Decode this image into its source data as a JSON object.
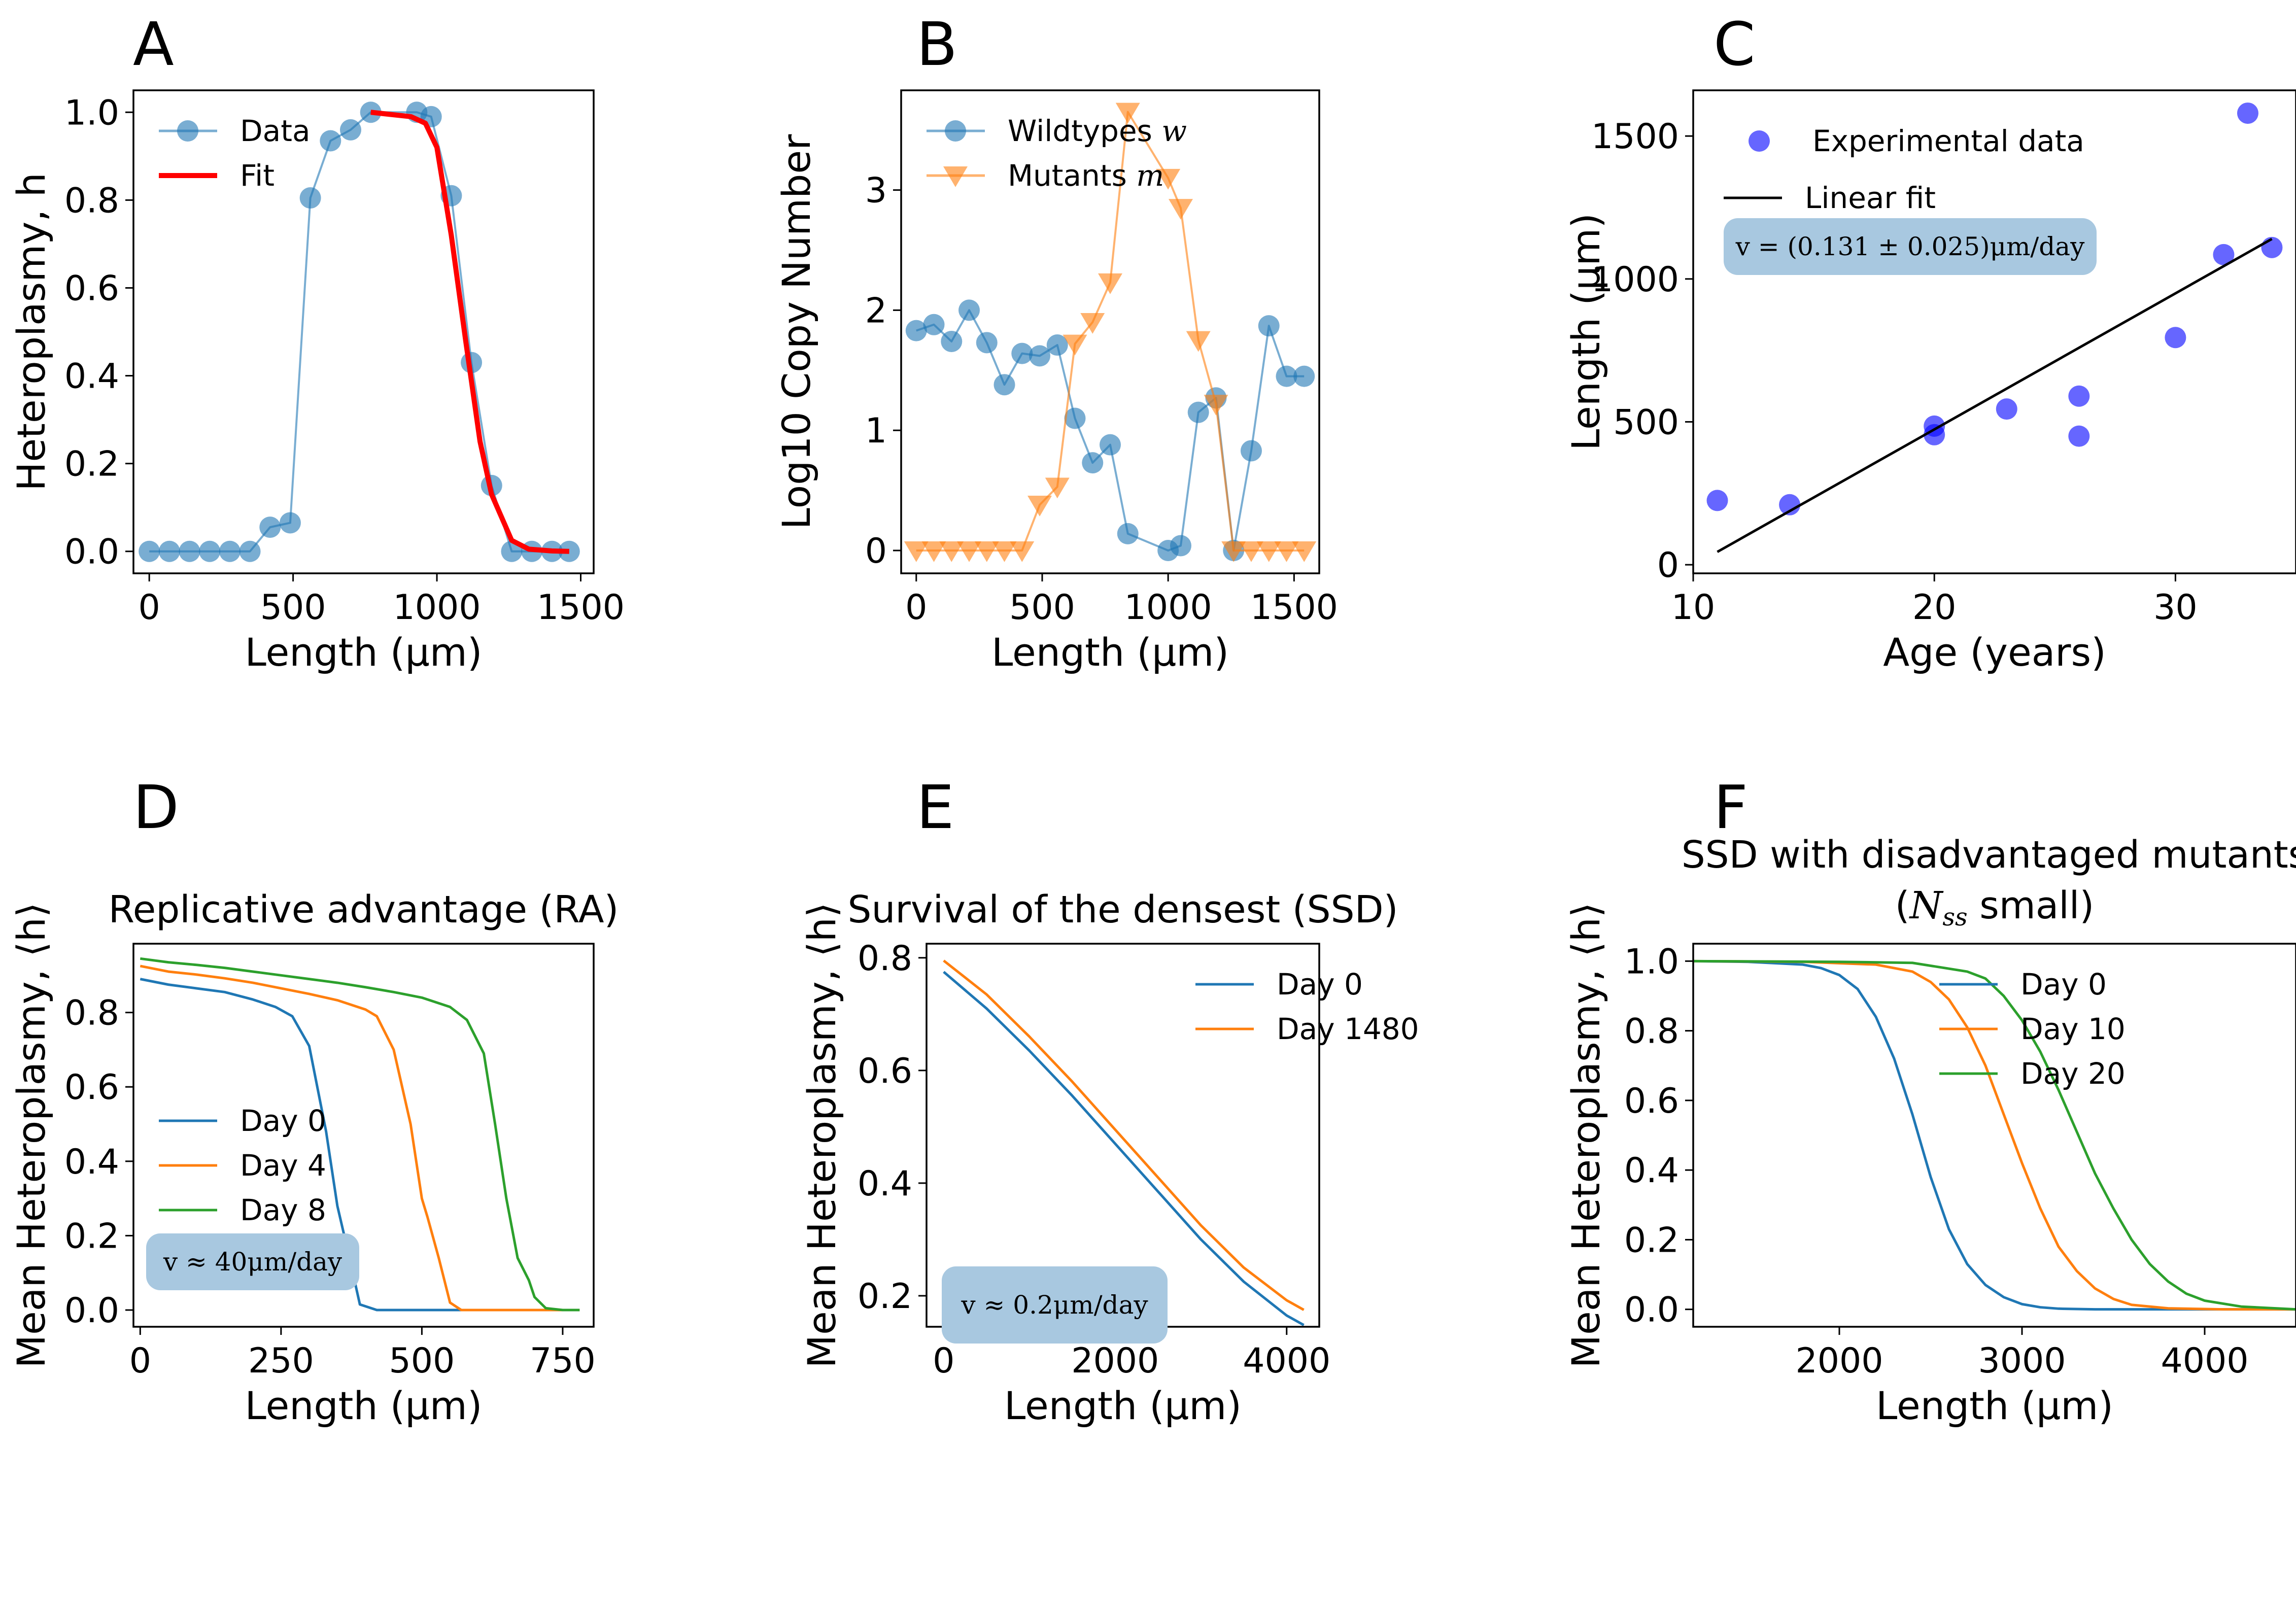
{
  "chart_data": [
    {
      "id": "A",
      "type": "line",
      "panel_label": "A",
      "title": "",
      "xlabel": "Length (μm)",
      "ylabel": "Heteroplasmy, h",
      "xlim": [
        -55,
        1545
      ],
      "ylim": [
        -0.05,
        1.05
      ],
      "xticks": [
        0,
        500,
        1000,
        1500
      ],
      "yticks": [
        0.0,
        0.2,
        0.4,
        0.6,
        0.8,
        1.0
      ],
      "tick_decimals": {
        "x": 0,
        "y": 1
      },
      "legend_position": "upper-left",
      "series": [
        {
          "name": "Data",
          "color": "#1f77b4",
          "marker": "circle",
          "alpha": 0.6,
          "x": [
            0,
            70,
            140,
            210,
            280,
            350,
            420,
            490,
            560,
            630,
            700,
            770,
            930,
            980,
            1050,
            1120,
            1190,
            1260,
            1330,
            1400,
            1460
          ],
          "y": [
            0.0,
            0.0,
            0.0,
            0.0,
            0.0,
            0.0,
            0.055,
            0.065,
            0.805,
            0.935,
            0.96,
            1.0,
            1.0,
            0.99,
            0.81,
            0.43,
            0.15,
            0.0,
            0.0,
            0.0,
            0.0
          ]
        },
        {
          "name": "Fit",
          "color": "#ff0000",
          "marker": "none",
          "line_width": 10,
          "x": [
            770,
            840,
            910,
            960,
            1000,
            1050,
            1100,
            1150,
            1190,
            1260,
            1320,
            1400,
            1460
          ],
          "y": [
            1.0,
            0.995,
            0.99,
            0.975,
            0.92,
            0.72,
            0.48,
            0.25,
            0.13,
            0.025,
            0.005,
            0.001,
            0.0
          ]
        }
      ]
    },
    {
      "id": "B",
      "type": "line",
      "panel_label": "B",
      "title": "",
      "xlabel": "Length (μm)",
      "ylabel": "Log10 Copy Number",
      "xlim": [
        -60,
        1600
      ],
      "ylim": [
        -0.19,
        3.83
      ],
      "xticks": [
        0,
        500,
        1000,
        1500
      ],
      "yticks": [
        0,
        1,
        2,
        3
      ],
      "tick_decimals": {
        "x": 0,
        "y": 0
      },
      "legend_position": "upper-left",
      "series": [
        {
          "name": "Wildtypes w",
          "color": "#1f77b4",
          "marker": "circle",
          "alpha": 0.6,
          "x": [
            0,
            70,
            140,
            210,
            280,
            350,
            420,
            490,
            560,
            630,
            700,
            770,
            840,
            1000,
            1050,
            1120,
            1190,
            1260,
            1330,
            1400,
            1470,
            1540
          ],
          "y": [
            1.83,
            1.88,
            1.74,
            2.0,
            1.73,
            1.38,
            1.64,
            1.62,
            1.71,
            1.1,
            0.73,
            0.88,
            0.14,
            0.0,
            0.04,
            1.15,
            1.27,
            0.0,
            0.83,
            1.87,
            1.45,
            1.45
          ]
        },
        {
          "name": "Mutants m",
          "color": "#ff7f0e",
          "marker": "triangle-down",
          "alpha": 0.6,
          "x": [
            0,
            70,
            140,
            210,
            280,
            350,
            420,
            490,
            560,
            630,
            700,
            770,
            840,
            1000,
            1050,
            1120,
            1190,
            1260,
            1330,
            1400,
            1470,
            1540
          ],
          "y": [
            0.0,
            0.0,
            0.0,
            0.0,
            0.0,
            0.0,
            0.0,
            0.38,
            0.53,
            1.72,
            1.9,
            2.23,
            3.65,
            3.1,
            2.85,
            1.75,
            1.22,
            0.0,
            0.0,
            0.0,
            0.0,
            0.0
          ]
        }
      ]
    },
    {
      "id": "C",
      "type": "scatter",
      "panel_label": "C",
      "title": "",
      "xlabel": "Age (years)",
      "ylabel": "Length (μm)",
      "xlim": [
        10.0,
        35.0
      ],
      "ylim": [
        -30,
        1660
      ],
      "xticks": [
        10,
        20,
        30
      ],
      "yticks": [
        0,
        500,
        1000,
        1500
      ],
      "tick_decimals": {
        "x": 0,
        "y": 0
      },
      "legend_position": "upper-left",
      "annotation": "v = (0.131 ± 0.025)μm/day",
      "series": [
        {
          "name": "Experimental data",
          "color": "#0000ff",
          "marker": "circle",
          "alpha": 0.6,
          "x": [
            11,
            14,
            20,
            20,
            23,
            26,
            26,
            30,
            32,
            33,
            34
          ],
          "y": [
            225,
            210,
            485,
            455,
            545,
            590,
            450,
            795,
            1085,
            1580,
            1110
          ]
        },
        {
          "name": "Linear fit",
          "color": "#000000",
          "marker": "none",
          "x": [
            11,
            34
          ],
          "y": [
            45,
            1140
          ]
        }
      ]
    },
    {
      "id": "D",
      "type": "line",
      "panel_label": "D",
      "title": "Replicative advantage (RA)",
      "xlabel": "Length (μm)",
      "ylabel": "Mean Heteroplasmy, ⟨h⟩",
      "xlim": [
        -12,
        805
      ],
      "ylim": [
        -0.045,
        0.985
      ],
      "xticks": [
        0,
        250,
        500,
        750
      ],
      "yticks": [
        0.0,
        0.2,
        0.4,
        0.6,
        0.8
      ],
      "tick_decimals": {
        "x": 0,
        "y": 1
      },
      "legend_position": "lower-left",
      "annotation": "v ≈ 40μm/day",
      "series": [
        {
          "name": "Day 0",
          "color": "#1f77b4",
          "marker": "none",
          "x": [
            0,
            50,
            100,
            150,
            200,
            240,
            270,
            300,
            330,
            350,
            370,
            390,
            420,
            500,
            600,
            700,
            780
          ],
          "y": [
            0.89,
            0.875,
            0.865,
            0.855,
            0.835,
            0.815,
            0.79,
            0.71,
            0.48,
            0.28,
            0.15,
            0.015,
            0.0,
            0.0,
            0.0,
            0.0,
            0.0
          ]
        },
        {
          "name": "Day 4",
          "color": "#ff7f0e",
          "marker": "none",
          "x": [
            0,
            50,
            100,
            150,
            200,
            250,
            300,
            350,
            400,
            420,
            450,
            480,
            500,
            510,
            530,
            550,
            570,
            600,
            700,
            780
          ],
          "y": [
            0.925,
            0.91,
            0.902,
            0.892,
            0.88,
            0.865,
            0.85,
            0.833,
            0.808,
            0.79,
            0.7,
            0.5,
            0.3,
            0.25,
            0.14,
            0.02,
            0.0,
            0.0,
            0.0,
            0.0
          ]
        },
        {
          "name": "Day 8",
          "color": "#2ca02c",
          "marker": "none",
          "x": [
            0,
            50,
            100,
            150,
            200,
            250,
            300,
            350,
            400,
            450,
            500,
            550,
            580,
            610,
            630,
            650,
            670,
            690,
            700,
            720,
            750,
            780
          ],
          "y": [
            0.945,
            0.935,
            0.928,
            0.92,
            0.91,
            0.9,
            0.89,
            0.88,
            0.868,
            0.855,
            0.84,
            0.815,
            0.78,
            0.69,
            0.5,
            0.3,
            0.14,
            0.08,
            0.035,
            0.005,
            0.0,
            0.0
          ]
        }
      ]
    },
    {
      "id": "E",
      "type": "line",
      "panel_label": "E",
      "title": "Survival of the densest (SSD)",
      "xlabel": "Length (μm)",
      "ylabel": "Mean Heteroplasmy, ⟨h⟩",
      "xlim": [
        -200,
        4380
      ],
      "ylim": [
        0.145,
        0.825
      ],
      "xticks": [
        0,
        2000,
        4000
      ],
      "yticks": [
        0.2,
        0.4,
        0.6,
        0.8
      ],
      "tick_decimals": {
        "x": 0,
        "y": 1
      },
      "legend_position": "upper-right",
      "annotation": "v ≈ 0.2μm/day",
      "series": [
        {
          "name": "Day 0",
          "color": "#1f77b4",
          "marker": "none",
          "x": [
            0,
            500,
            1000,
            1500,
            2000,
            2500,
            3000,
            3500,
            4000,
            4200
          ],
          "y": [
            0.775,
            0.71,
            0.635,
            0.555,
            0.47,
            0.385,
            0.3,
            0.225,
            0.165,
            0.148
          ]
        },
        {
          "name": "Day 1480",
          "color": "#ff7f0e",
          "marker": "none",
          "x": [
            0,
            500,
            1000,
            1500,
            2000,
            2500,
            3000,
            3500,
            4000,
            4200
          ],
          "y": [
            0.795,
            0.735,
            0.66,
            0.58,
            0.495,
            0.41,
            0.325,
            0.25,
            0.192,
            0.175
          ]
        }
      ]
    },
    {
      "id": "F",
      "type": "line",
      "panel_label": "F",
      "title": "SSD with disadvantaged mutants",
      "subtitle": "(N_ss small)",
      "xlabel": "Length (μm)",
      "ylabel": "Mean Heteroplasmy, ⟨h⟩",
      "xlim": [
        1200,
        4500
      ],
      "ylim": [
        -0.05,
        1.05
      ],
      "xticks": [
        2000,
        3000,
        4000
      ],
      "yticks": [
        0.0,
        0.2,
        0.4,
        0.6,
        0.8,
        1.0
      ],
      "tick_decimals": {
        "x": 0,
        "y": 1
      },
      "legend_position": "upper-right",
      "series": [
        {
          "name": "Day 0",
          "color": "#1f77b4",
          "marker": "none",
          "x": [
            1200,
            1500,
            1800,
            1900,
            2000,
            2100,
            2200,
            2300,
            2400,
            2500,
            2600,
            2700,
            2800,
            2900,
            3000,
            3100,
            3200,
            3400,
            3700,
            4000,
            4500
          ],
          "y": [
            1.0,
            0.998,
            0.99,
            0.98,
            0.96,
            0.92,
            0.84,
            0.72,
            0.56,
            0.38,
            0.23,
            0.13,
            0.07,
            0.035,
            0.015,
            0.006,
            0.002,
            0.0,
            0.0,
            0.0,
            0.0
          ]
        },
        {
          "name": "Day 10",
          "color": "#ff7f0e",
          "marker": "none",
          "x": [
            1200,
            1800,
            2200,
            2400,
            2500,
            2600,
            2700,
            2800,
            2900,
            3000,
            3100,
            3200,
            3300,
            3400,
            3500,
            3600,
            3800,
            4100,
            4500
          ],
          "y": [
            1.0,
            0.998,
            0.99,
            0.97,
            0.94,
            0.89,
            0.81,
            0.7,
            0.56,
            0.42,
            0.29,
            0.18,
            0.11,
            0.06,
            0.03,
            0.013,
            0.003,
            0.0,
            0.0
          ]
        },
        {
          "name": "Day 20",
          "color": "#2ca02c",
          "marker": "none",
          "x": [
            1200,
            2000,
            2400,
            2700,
            2800,
            2900,
            3000,
            3100,
            3200,
            3300,
            3400,
            3500,
            3600,
            3700,
            3800,
            3900,
            4000,
            4200,
            4500
          ],
          "y": [
            1.0,
            0.998,
            0.995,
            0.97,
            0.95,
            0.9,
            0.83,
            0.74,
            0.63,
            0.51,
            0.39,
            0.29,
            0.2,
            0.13,
            0.08,
            0.045,
            0.025,
            0.008,
            0.0
          ]
        }
      ]
    }
  ]
}
